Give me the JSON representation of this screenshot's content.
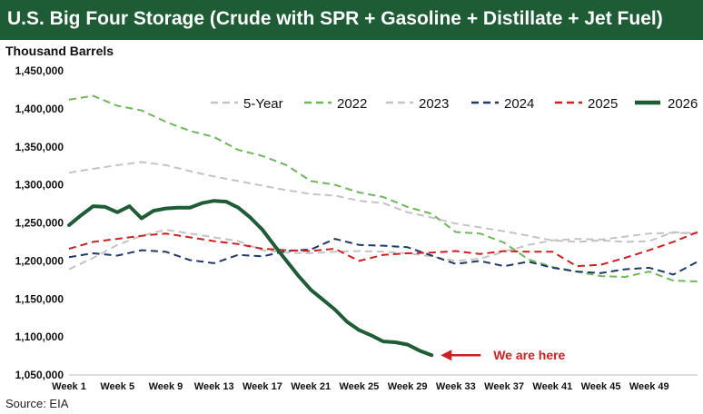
{
  "header": {
    "title": "U.S. Big Four Storage (Crude with SPR + Gasoline + Distillate + Jet Fuel)"
  },
  "footer": {
    "source": "Source: EIA"
  },
  "colors": {
    "title_bar": "#1e5c35"
  },
  "chart_data": {
    "type": "line",
    "title": "U.S. Big Four Storage (Crude with SPR + Gasoline + Distillate + Jet Fuel)",
    "ylabel": "Thousand Barrels",
    "xlabel": "",
    "ylim": [
      1050000,
      1450000
    ],
    "yticks": [
      1050000,
      1100000,
      1150000,
      1200000,
      1250000,
      1300000,
      1350000,
      1400000,
      1450000
    ],
    "ytick_labels": [
      "1,050,000",
      "1,100,000",
      "1,150,000",
      "1,200,000",
      "1,250,000",
      "1,300,000",
      "1,350,000",
      "1,400,000",
      "1,450,000"
    ],
    "xlim": [
      1,
      53
    ],
    "xticks": [
      1,
      5,
      9,
      13,
      17,
      21,
      25,
      29,
      33,
      37,
      41,
      45,
      49
    ],
    "xtick_labels": [
      "Week 1",
      "Week 5",
      "Week 9",
      "Week 13",
      "Week 17",
      "Week 21",
      "Week 25",
      "Week 29",
      "Week 33",
      "Week 37",
      "Week 41",
      "Week 45",
      "Week 49"
    ],
    "grid": false,
    "legend_position": "top-right",
    "annotation": {
      "text": "We are here",
      "week": 31,
      "value": 1076000
    },
    "series": [
      {
        "name": "5-Year",
        "color": "#c4c4c4",
        "dash": "dashed",
        "x": [
          1,
          3,
          5,
          7,
          9,
          11,
          13,
          15,
          17,
          19,
          21,
          23,
          25,
          27,
          29,
          31,
          33,
          35,
          37,
          39,
          41,
          43,
          45,
          47,
          49,
          51,
          53
        ],
        "values": [
          1189000,
          1204000,
          1221000,
          1233000,
          1241000,
          1236000,
          1231000,
          1226000,
          1214000,
          1211000,
          1210000,
          1212000,
          1213000,
          1212000,
          1210000,
          1206000,
          1200000,
          1203000,
          1212000,
          1221000,
          1227000,
          1229000,
          1228000,
          1232000,
          1236000,
          1237000,
          1236000
        ]
      },
      {
        "name": "2022",
        "color": "#6fb85a",
        "dash": "dashed",
        "x": [
          1,
          3,
          5,
          7,
          9,
          11,
          13,
          15,
          17,
          19,
          21,
          23,
          25,
          27,
          29,
          31,
          33,
          35,
          37,
          39,
          41,
          43,
          45,
          47,
          49,
          51,
          53
        ],
        "values": [
          1412000,
          1417000,
          1404000,
          1398000,
          1383000,
          1371000,
          1363000,
          1346000,
          1338000,
          1326000,
          1305000,
          1300000,
          1290000,
          1284000,
          1271000,
          1262000,
          1238000,
          1236000,
          1224000,
          1202000,
          1192000,
          1186000,
          1180000,
          1179000,
          1186000,
          1174000,
          1173000
        ]
      },
      {
        "name": "2023",
        "color": "#c4c4c4",
        "dash": "dashed",
        "x": [
          1,
          3,
          5,
          7,
          9,
          11,
          13,
          15,
          17,
          19,
          21,
          23,
          25,
          27,
          29,
          31,
          33,
          35,
          37,
          39,
          41,
          43,
          45,
          47,
          49,
          51,
          53
        ],
        "values": [
          1316000,
          1321000,
          1326000,
          1330000,
          1326000,
          1318000,
          1311000,
          1305000,
          1299000,
          1293000,
          1288000,
          1286000,
          1279000,
          1276000,
          1264000,
          1257000,
          1249000,
          1244000,
          1239000,
          1233000,
          1227000,
          1225000,
          1227000,
          1225000,
          1226000,
          1238000,
          1236000
        ]
      },
      {
        "name": "2024",
        "color": "#1f3a68",
        "dash": "dashed",
        "x": [
          1,
          3,
          5,
          7,
          9,
          11,
          13,
          15,
          17,
          19,
          21,
          23,
          25,
          27,
          29,
          31,
          33,
          35,
          37,
          39,
          41,
          43,
          45,
          47,
          49,
          51,
          53
        ],
        "values": [
          1205000,
          1210000,
          1207000,
          1214000,
          1212000,
          1201000,
          1197000,
          1208000,
          1206000,
          1213000,
          1215000,
          1229000,
          1221000,
          1220000,
          1218000,
          1207000,
          1196000,
          1200000,
          1193000,
          1199000,
          1191000,
          1186000,
          1184000,
          1189000,
          1191000,
          1182000,
          1199000
        ]
      },
      {
        "name": "2025",
        "color": "#d01f1f",
        "dash": "dashed",
        "x": [
          1,
          3,
          5,
          7,
          9,
          11,
          13,
          15,
          17,
          19,
          21,
          23,
          25,
          27,
          29,
          31,
          33,
          35,
          37,
          39,
          41,
          43,
          45,
          47,
          49,
          51,
          53
        ],
        "values": [
          1216000,
          1225000,
          1229000,
          1233000,
          1236000,
          1231000,
          1226000,
          1222000,
          1216000,
          1214000,
          1213000,
          1216000,
          1200000,
          1208000,
          1210000,
          1211000,
          1213000,
          1209000,
          1213000,
          1212000,
          1212000,
          1193000,
          1195000,
          1204000,
          1214000,
          1225000,
          1238000
        ]
      },
      {
        "name": "2026",
        "color": "#1e5c35",
        "dash": "solid",
        "x": [
          1,
          2,
          3,
          4,
          5,
          6,
          7,
          8,
          9,
          10,
          11,
          12,
          13,
          14,
          15,
          16,
          17,
          18,
          19,
          20,
          21,
          22,
          23,
          24,
          25,
          26,
          27,
          28,
          29,
          30,
          31
        ],
        "values": [
          1247000,
          1260000,
          1272000,
          1271000,
          1264000,
          1272000,
          1256000,
          1266000,
          1269000,
          1270000,
          1270000,
          1276000,
          1279000,
          1278000,
          1270000,
          1257000,
          1241000,
          1220000,
          1200000,
          1180000,
          1162000,
          1149000,
          1136000,
          1120000,
          1109000,
          1102000,
          1094000,
          1093000,
          1090000,
          1082000,
          1076000
        ]
      }
    ]
  }
}
